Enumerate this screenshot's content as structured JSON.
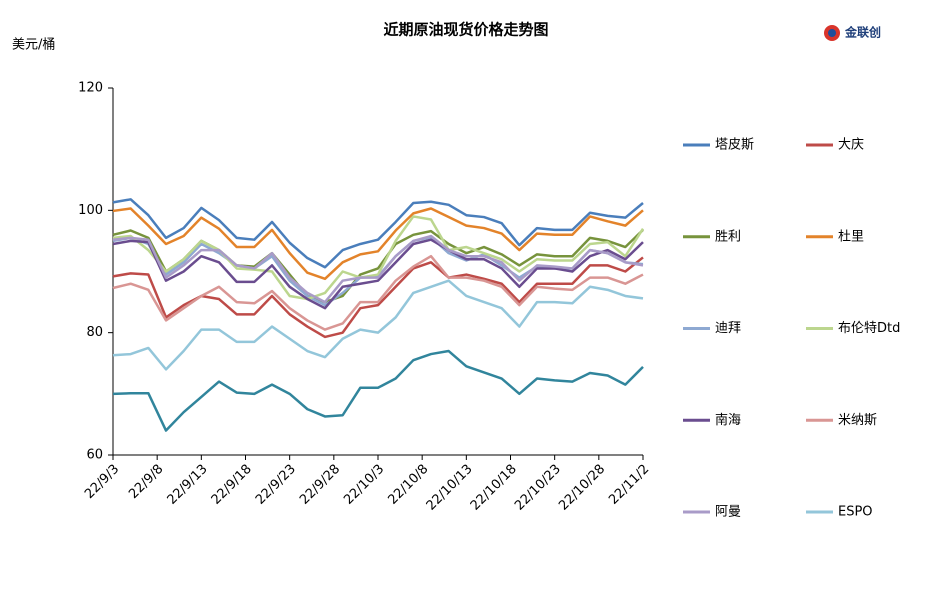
{
  "chart_data": {
    "type": "line",
    "title": "近期原油现货价格走势图",
    "y_label": "美元/桶",
    "logo": "金联创",
    "x": [
      "22/9/3",
      "22/9/5",
      "22/9/7",
      "22/9/9",
      "22/9/11",
      "22/9/13",
      "22/9/15",
      "22/9/17",
      "22/9/19",
      "22/9/21",
      "22/9/23",
      "22/9/25",
      "22/9/27",
      "22/9/29",
      "22/10/1",
      "22/10/3",
      "22/10/5",
      "22/10/7",
      "22/10/9",
      "22/10/11",
      "22/10/13",
      "22/10/15",
      "22/10/17",
      "22/10/19",
      "22/10/21",
      "22/10/23",
      "22/10/25",
      "22/10/27",
      "22/10/29",
      "22/10/31",
      "22/11/2"
    ],
    "xlim": [
      "22/9/3",
      "22/11/2"
    ],
    "xticks": [
      "22/9/3",
      "22/9/8",
      "22/9/13",
      "22/9/18",
      "22/9/23",
      "22/9/28",
      "22/10/3",
      "22/10/8",
      "22/10/13",
      "22/10/18",
      "22/10/23",
      "22/10/28",
      "22/11/2"
    ],
    "ylim": [
      60,
      120
    ],
    "yticks": [
      60,
      80,
      100,
      120
    ],
    "grid": false,
    "legend": "right",
    "series": [
      {
        "name": "塔皮斯",
        "color": "#4a7ebb",
        "values": [
          101.3,
          101.8,
          99.2,
          95.5,
          97.1,
          100.4,
          98.4,
          95.5,
          95.2,
          98.1,
          94.7,
          92.2,
          90.7,
          93.5,
          94.5,
          95.2,
          98.1,
          101.2,
          101.4,
          100.9,
          99.2,
          98.9,
          97.9,
          94.3,
          97.1,
          96.8,
          96.8,
          99.6,
          99.1,
          98.8,
          101.2
        ]
      },
      {
        "name": "大庆",
        "color": "#be4b48",
        "values": [
          89.2,
          89.7,
          89.5,
          82.5,
          84.5,
          86.0,
          85.5,
          83.0,
          83.0,
          86.0,
          83.0,
          81.0,
          79.3,
          80.0,
          84.0,
          84.5,
          87.5,
          90.5,
          91.5,
          89.0,
          89.5,
          88.8,
          88.0,
          85.0,
          88.0,
          88.0,
          88.0,
          91.0,
          91.0,
          90.0,
          92.3
        ]
      },
      {
        "name": "胜利",
        "color": "#77933c",
        "values": [
          96.0,
          96.7,
          95.5,
          90.0,
          92.0,
          95.0,
          93.5,
          91.0,
          90.8,
          93.0,
          89.5,
          86.0,
          85.0,
          86.0,
          89.5,
          90.5,
          94.5,
          96.0,
          96.6,
          94.5,
          93.0,
          94.0,
          92.8,
          91.0,
          92.8,
          92.5,
          92.5,
          95.5,
          95.0,
          94.0,
          96.8
        ]
      },
      {
        "name": "杜里",
        "color": "#e3832a",
        "values": [
          99.9,
          100.3,
          97.5,
          94.5,
          95.8,
          98.8,
          97.0,
          94.0,
          94.0,
          96.8,
          93.0,
          89.8,
          88.8,
          91.5,
          92.8,
          93.3,
          96.7,
          99.5,
          100.3,
          98.9,
          97.5,
          97.1,
          96.2,
          93.5,
          96.2,
          96.0,
          96.0,
          99.0,
          98.2,
          97.5,
          100.0
        ]
      },
      {
        "name": "迪拜",
        "color": "#8ea9d2",
        "values": [
          95.0,
          95.5,
          94.5,
          89.5,
          91.5,
          94.5,
          93.0,
          91.0,
          90.5,
          92.5,
          88.5,
          86.0,
          84.5,
          86.5,
          89.0,
          89.2,
          92.5,
          95.0,
          95.6,
          93.0,
          91.8,
          92.8,
          91.0,
          89.0,
          90.8,
          90.5,
          90.5,
          93.5,
          93.0,
          91.5,
          91.2
        ]
      },
      {
        "name": "布伦特Dtd",
        "color": "#bcd68e",
        "values": [
          95.5,
          95.8,
          93.5,
          90.0,
          92.0,
          95.0,
          93.5,
          90.5,
          90.3,
          90.0,
          86.0,
          85.5,
          86.5,
          90.0,
          89.0,
          89.5,
          95.0,
          99.0,
          98.5,
          93.5,
          94.0,
          93.0,
          92.0,
          90.0,
          92.0,
          91.8,
          91.8,
          94.5,
          94.8,
          92.5,
          97.0
        ]
      },
      {
        "name": "南海",
        "color": "#6a4d8f",
        "values": [
          94.5,
          95.0,
          94.8,
          88.5,
          90.0,
          92.5,
          91.5,
          88.3,
          88.3,
          91.0,
          87.5,
          85.5,
          84.0,
          87.5,
          88.0,
          88.5,
          91.5,
          94.5,
          95.2,
          93.5,
          92.0,
          92.0,
          90.5,
          87.5,
          90.5,
          90.5,
          90.0,
          92.5,
          93.5,
          92.0,
          94.8
        ]
      },
      {
        "name": "米纳斯",
        "color": "#d99694",
        "values": [
          87.3,
          88.0,
          87.0,
          82.0,
          84.0,
          86.0,
          87.5,
          85.0,
          84.8,
          86.8,
          84.0,
          82.0,
          80.5,
          81.5,
          85.0,
          85.0,
          88.5,
          90.8,
          92.5,
          89.0,
          89.0,
          88.5,
          87.5,
          84.5,
          87.5,
          87.2,
          87.0,
          89.0,
          89.0,
          88.0,
          89.5
        ]
      },
      {
        "name": "阿曼",
        "color": "#a99bc8",
        "values": [
          95.2,
          95.5,
          95.2,
          89.0,
          91.0,
          93.5,
          93.5,
          91.0,
          90.5,
          93.0,
          89.0,
          86.5,
          85.0,
          88.5,
          89.0,
          89.0,
          92.5,
          95.0,
          95.8,
          93.5,
          92.5,
          92.5,
          91.5,
          88.5,
          91.0,
          90.8,
          90.5,
          93.5,
          93.0,
          91.5,
          91.0
        ]
      },
      {
        "name": "ESPO",
        "color": "#93c6da",
        "values": [
          76.3,
          76.5,
          77.5,
          74.0,
          77.0,
          80.5,
          80.5,
          78.5,
          78.5,
          81.0,
          79.0,
          77.0,
          76.0,
          79.0,
          80.5,
          80.0,
          82.5,
          86.5,
          87.5,
          88.5,
          86.0,
          85.0,
          84.0,
          81.0,
          85.0,
          85.0,
          84.8,
          87.5,
          87.0,
          86.0,
          85.6
        ]
      },
      {
        "color": "#31859c",
        "values": [
          70.0,
          70.1,
          70.1,
          64.0,
          67.0,
          69.5,
          72.0,
          70.2,
          70.0,
          71.5,
          70.0,
          67.5,
          66.3,
          66.5,
          71.0,
          71.0,
          72.5,
          75.5,
          76.5,
          77.0,
          74.5,
          73.5,
          72.5,
          70.0,
          72.5,
          72.2,
          72.0,
          73.4,
          73.0,
          71.5,
          74.4
        ]
      }
    ]
  }
}
